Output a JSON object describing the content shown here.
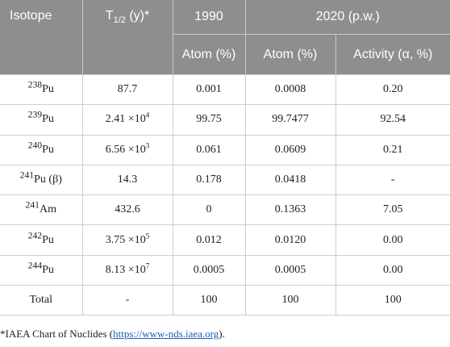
{
  "header": {
    "isotope": "Isotope",
    "half_life_prefix": "T",
    "half_life_sub": "1/2",
    "half_life_suffix": " (y)*",
    "group_1990": "1990",
    "group_2020": "2020 (p.w.)",
    "col_1990_atom": "Atom (%)",
    "col_2020_atom": "Atom (%)",
    "col_2020_activity": "Activity (α, %)"
  },
  "rows": [
    {
      "mass": "238",
      "element": "Pu",
      "note": "",
      "half_life_mantissa": "87.7",
      "half_life_exp": "",
      "atom_1990": "0.001",
      "atom_2020": "0.0008",
      "activity_2020": "0.20"
    },
    {
      "mass": "239",
      "element": "Pu",
      "note": "",
      "half_life_mantissa": "2.41 ×10",
      "half_life_exp": "4",
      "atom_1990": "99.75",
      "atom_2020": "99.7477",
      "activity_2020": "92.54"
    },
    {
      "mass": "240",
      "element": "Pu",
      "note": "",
      "half_life_mantissa": "6.56 ×10",
      "half_life_exp": "3",
      "atom_1990": "0.061",
      "atom_2020": "0.0609",
      "activity_2020": "0.21"
    },
    {
      "mass": "241",
      "element": "Pu",
      "note": " (β)",
      "half_life_mantissa": "14.3",
      "half_life_exp": "",
      "atom_1990": "0.178",
      "atom_2020": "0.0418",
      "activity_2020": "-"
    },
    {
      "mass": "241",
      "element": "Am",
      "note": "",
      "half_life_mantissa": "432.6",
      "half_life_exp": "",
      "atom_1990": "0",
      "atom_2020": "0.1363",
      "activity_2020": "7.05"
    },
    {
      "mass": "242",
      "element": "Pu",
      "note": "",
      "half_life_mantissa": "3.75 ×10",
      "half_life_exp": "5",
      "atom_1990": "0.012",
      "atom_2020": "0.0120",
      "activity_2020": "0.00"
    },
    {
      "mass": "244",
      "element": "Pu",
      "note": "",
      "half_life_mantissa": "8.13 ×10",
      "half_life_exp": "7",
      "atom_1990": "0.0005",
      "atom_2020": "0.0005",
      "activity_2020": "0.00"
    },
    {
      "mass": "",
      "element": "Total",
      "note": "",
      "half_life_mantissa": "-",
      "half_life_exp": "",
      "atom_1990": "100",
      "atom_2020": "100",
      "activity_2020": "100"
    }
  ],
  "footnote": {
    "prefix": "*IAEA Chart of Nuclides (",
    "link_text": "https://www-nds.iaea.org",
    "suffix": ")."
  },
  "colors": {
    "header_bg": "#8e8e8e",
    "header_text": "#ffffff",
    "link": "#1a5fb4"
  }
}
